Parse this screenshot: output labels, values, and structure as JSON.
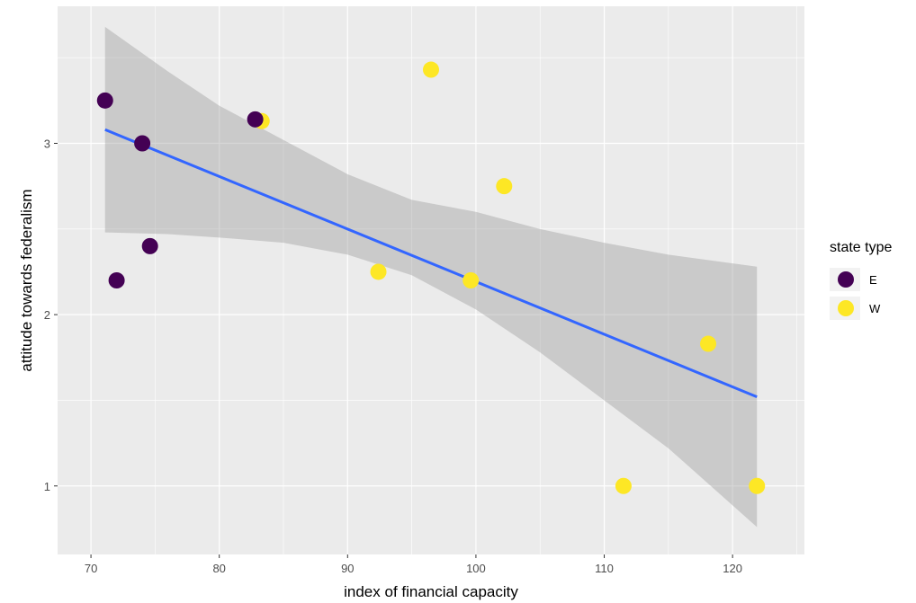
{
  "chart_data": {
    "type": "scatter",
    "title": "",
    "xlabel": "index of financial capacity",
    "ylabel": "attitude towards federalism",
    "xlim": [
      67.4,
      125.6
    ],
    "ylim": [
      0.6,
      3.8
    ],
    "x_ticks": [
      70,
      80,
      90,
      100,
      110,
      120
    ],
    "y_ticks": [
      1,
      2,
      3
    ],
    "x_tick_labels": [
      "70",
      "80",
      "90",
      "100",
      "110",
      "120"
    ],
    "y_tick_labels": [
      "1",
      "2",
      "3"
    ],
    "grid": true,
    "legend": {
      "title": "state type",
      "position": "right",
      "entries": [
        {
          "label": "E",
          "color": "#440154"
        },
        {
          "label": "W",
          "color": "#FDE725"
        }
      ]
    },
    "series": [
      {
        "name": "E",
        "color": "#440154",
        "points": [
          {
            "x": 71.1,
            "y": 3.25
          },
          {
            "x": 72.0,
            "y": 2.2
          },
          {
            "x": 74.0,
            "y": 3.0
          },
          {
            "x": 74.6,
            "y": 2.4
          },
          {
            "x": 82.8,
            "y": 3.14
          }
        ]
      },
      {
        "name": "W",
        "color": "#FDE725",
        "points": [
          {
            "x": 83.3,
            "y": 3.13
          },
          {
            "x": 92.4,
            "y": 2.25
          },
          {
            "x": 96.5,
            "y": 3.43
          },
          {
            "x": 99.6,
            "y": 2.2
          },
          {
            "x": 102.2,
            "y": 2.75
          },
          {
            "x": 111.5,
            "y": 1.0
          },
          {
            "x": 118.1,
            "y": 1.83
          },
          {
            "x": 121.9,
            "y": 1.0
          }
        ]
      }
    ],
    "regression": {
      "method": "linear",
      "color": "#3366FF",
      "x": [
        71.1,
        121.9
      ],
      "y": [
        3.08,
        1.52
      ],
      "band_color": "#999999",
      "band": [
        {
          "x": 71.1,
          "lo": 2.48,
          "hi": 3.68
        },
        {
          "x": 76.0,
          "lo": 2.47,
          "hi": 3.42
        },
        {
          "x": 80.0,
          "lo": 2.45,
          "hi": 3.22
        },
        {
          "x": 85.0,
          "lo": 2.42,
          "hi": 3.02
        },
        {
          "x": 90.0,
          "lo": 2.35,
          "hi": 2.82
        },
        {
          "x": 95.0,
          "lo": 2.23,
          "hi": 2.67
        },
        {
          "x": 100.0,
          "lo": 2.03,
          "hi": 2.6
        },
        {
          "x": 105.0,
          "lo": 1.78,
          "hi": 2.5
        },
        {
          "x": 110.0,
          "lo": 1.5,
          "hi": 2.42
        },
        {
          "x": 115.0,
          "lo": 1.22,
          "hi": 2.35
        },
        {
          "x": 121.9,
          "lo": 0.76,
          "hi": 2.28
        }
      ]
    }
  }
}
